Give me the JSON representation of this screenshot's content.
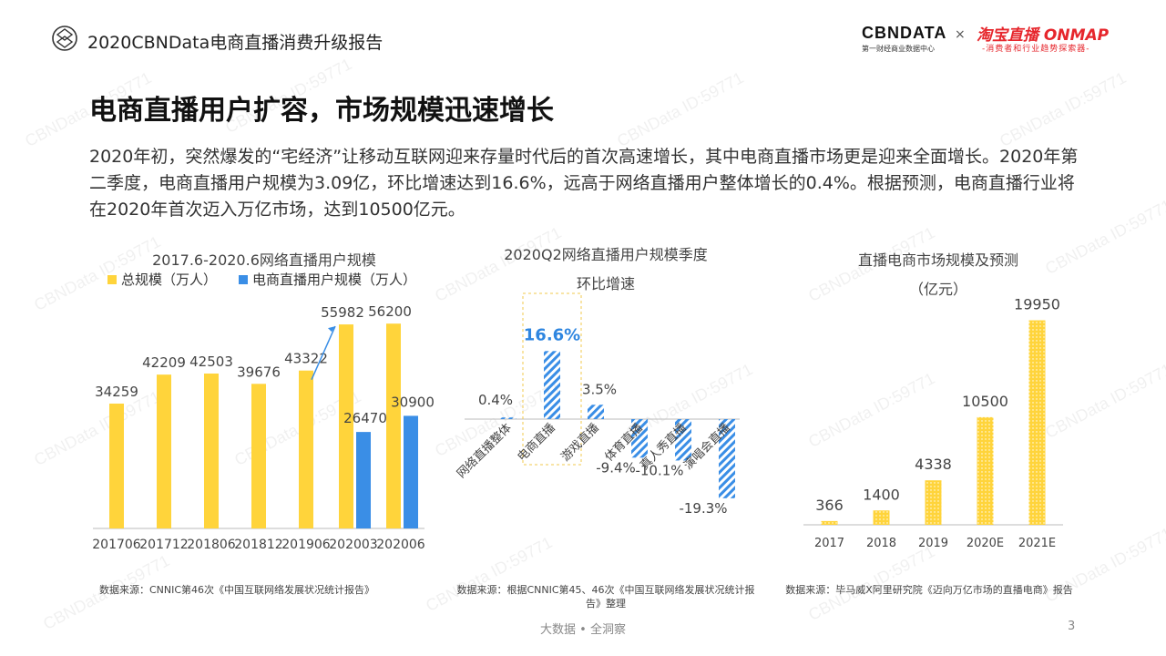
{
  "header": {
    "report_title": "2020CBNData电商直播消费升级报告",
    "cbn_brand": "CBNDATA",
    "cbn_sub": "第一财经商业数据中心",
    "times_mark": "×",
    "taobao_brand": "淘宝直播 ONMAP",
    "taobao_sub": "-消费者和行业趋势探索器-"
  },
  "page_heading": "电商直播用户扩容，市场规模迅速增长",
  "intro": "2020年初，突然爆发的“宅经济”让移动互联网迎来存量时代后的首次高速增长，其中电商直播市场更是迎来全面增长。2020年第二季度，电商直播用户规模为3.09亿，环比增速达到16.6%，远高于网络直播用户整体增长的0.4%。根据预测，电商直播行业将在2020年首次迈入万亿市场，达到10500亿元。",
  "watermark": "CBNData ID:59771",
  "colors": {
    "yellow": "#FFD43B",
    "blue": "#3A8EE6",
    "axis": "#BBBBBB",
    "highlight_text": "#2F86E0"
  },
  "chart_data": [
    {
      "type": "bar",
      "title": "2017.6-2020.6网络直播用户规模",
      "categories": [
        "201706",
        "201712",
        "201806",
        "201812",
        "201906",
        "202003",
        "202006"
      ],
      "series": [
        {
          "name": "总规模（万人）",
          "values": [
            34259,
            42209,
            42503,
            39676,
            43322,
            55982,
            56200
          ]
        },
        {
          "name": "电商直播用户规模（万人）",
          "values": [
            null,
            null,
            null,
            null,
            null,
            26470,
            30900
          ]
        }
      ],
      "annotation": "arrow from 201906 to 202003",
      "ylim": [
        0,
        60000
      ],
      "legend": "top-left",
      "source": "数据来源：CNNIC第46次《中国互联网络发展状况统计报告》"
    },
    {
      "type": "bar",
      "title_line1": "2020Q2网络直播用户规模季度",
      "title_line2": "环比增速",
      "categories": [
        "网络直播整体",
        "电商直播",
        "游戏直播",
        "体育直播",
        "真人秀直播",
        "演唱会直播"
      ],
      "values": [
        0.4,
        16.6,
        3.5,
        -9.4,
        -10.1,
        -19.3
      ],
      "labels": [
        "0.4%",
        "16.6%",
        "3.5%",
        "-9.4%",
        "-10.1%",
        "-19.3%"
      ],
      "highlight": "电商直播",
      "bar_style": "hatched",
      "source": "数据来源：根据CNNIC第45、46次《中国互联网络发展状况统计报告》整理"
    },
    {
      "type": "bar",
      "title_line1": "直播电商市场规模及预测",
      "title_line2": "（亿元）",
      "categories": [
        "2017",
        "2018",
        "2019",
        "2020E",
        "2021E"
      ],
      "values": [
        366,
        1400,
        4338,
        10500,
        19950
      ],
      "ylim": [
        0,
        20000
      ],
      "bar_style": "dotted",
      "source": "数据来源：毕马威X阿里研究院《迈向万亿市场的直播电商》报告"
    }
  ],
  "footer": {
    "text": "大数据 • 全洞察",
    "page_number": "3"
  }
}
